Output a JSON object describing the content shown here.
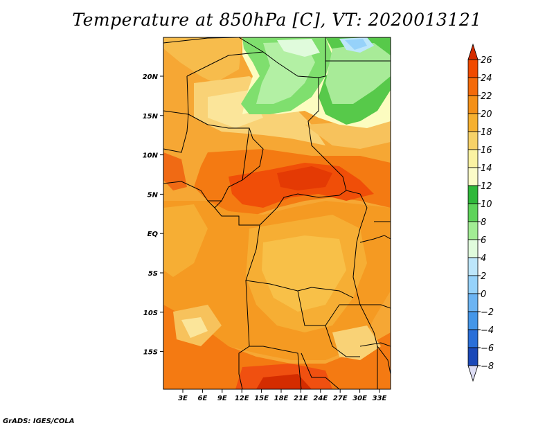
{
  "title": "Temperature at 850hPa [C], VT: 2020013121",
  "footer": "GrADS: IGES/COLA",
  "map": {
    "lat_ticks": [
      "20N",
      "15N",
      "10N",
      "5N",
      "EQ",
      "5S",
      "10S",
      "15S"
    ],
    "lon_ticks": [
      "3E",
      "6E",
      "9E",
      "12E",
      "15E",
      "18E",
      "21E",
      "24E",
      "27E",
      "30E",
      "33E"
    ]
  },
  "colorbar": {
    "levels": [
      26,
      24,
      22,
      20,
      18,
      16,
      14,
      12,
      10,
      8,
      6,
      4,
      2,
      0,
      -2,
      -4,
      -6,
      -8
    ],
    "colors": [
      "#d42c00",
      "#f04a00",
      "#f46a0a",
      "#f49018",
      "#f6b030",
      "#f7d268",
      "#fbf2a2",
      "#fcfcc8",
      "#2fb83a",
      "#5ed35a",
      "#a2ec94",
      "#e0fbdc",
      "#bde6fb",
      "#96d2fa",
      "#6cb4f3",
      "#4496e8",
      "#2a6fd8",
      "#1a48b8",
      "#0d2a8c",
      "#0a1660"
    ],
    "top_color": "#d42c00",
    "bottom_color": "#dcdcf4"
  }
}
